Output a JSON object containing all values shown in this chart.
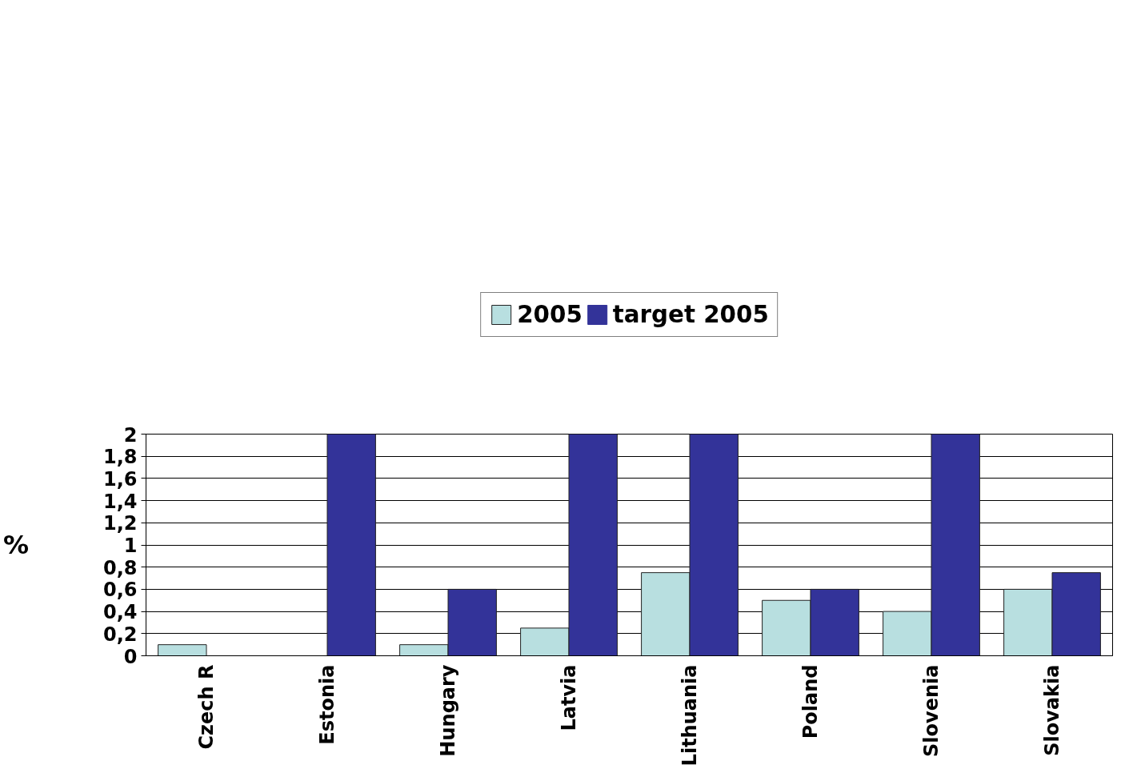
{
  "chart_data": {
    "type": "bar",
    "ylabel": "%",
    "categories": [
      "Czech R",
      "Estonia",
      "Hungary",
      "Latvia",
      "Lithuania",
      "Poland",
      "Slovenia",
      "Slovakia"
    ],
    "series": [
      {
        "name": "2005",
        "color": "#b8dfe0",
        "values": [
          0.1,
          0,
          0.1,
          0.25,
          0.75,
          0.5,
          0.4,
          0.6
        ]
      },
      {
        "name": "target 2005",
        "color": "#333399",
        "values": [
          0,
          2,
          0.6,
          2,
          2,
          0.6,
          2,
          0.75
        ]
      }
    ],
    "ylim": [
      0,
      2
    ],
    "yticks": [
      0,
      {
        "value": 0.2,
        "label": "0,2"
      },
      {
        "value": 0.4,
        "label": "0,4"
      },
      {
        "value": 0.6,
        "label": "0,6"
      },
      {
        "value": 0.8,
        "label": "0,8"
      },
      1,
      {
        "value": 1.2,
        "label": "1,2"
      },
      {
        "value": 1.4,
        "label": "1,4"
      },
      {
        "value": 1.6,
        "label": "1,6"
      },
      {
        "value": 1.8,
        "label": "1,8"
      },
      2
    ],
    "grid": "y",
    "legend": "top"
  }
}
